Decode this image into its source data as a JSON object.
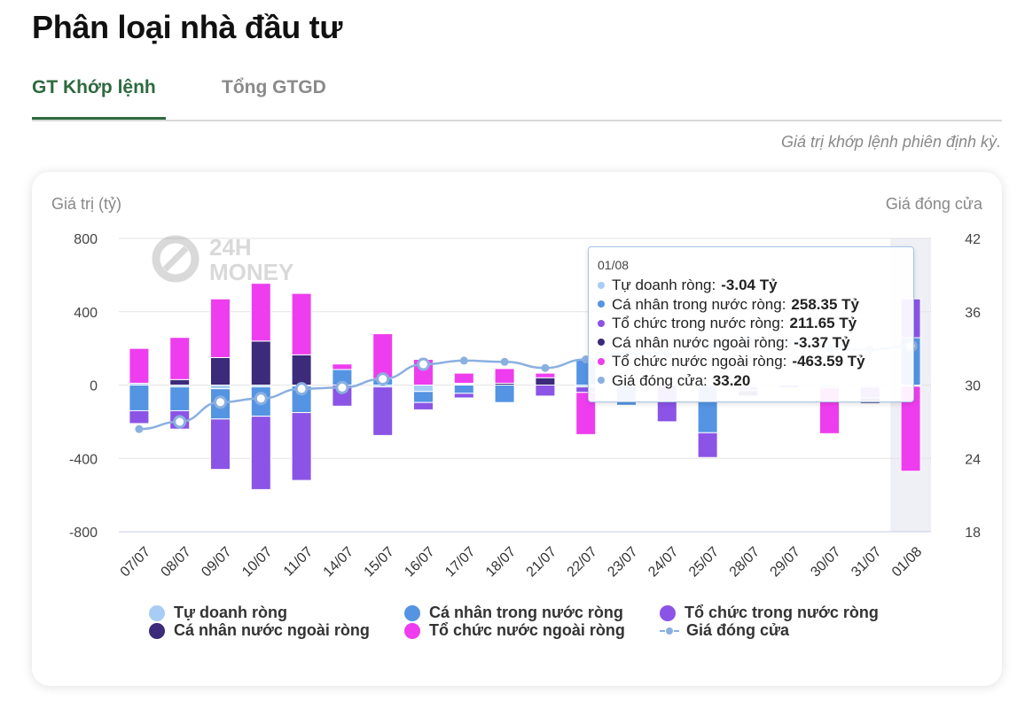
{
  "page": {
    "title": "Phân loại nhà đầu tư",
    "tabs": [
      "GT Khớp lệnh",
      "Tổng GTGD"
    ],
    "note": "Giá trị khớp lệnh phiên định kỳ."
  },
  "colors": {
    "tu_doanh": "#a7cdf4",
    "ca_nhan_trong_nuoc": "#5494e3",
    "to_chuc_trong_nuoc": "#8b54e6",
    "ca_nhan_nuoc_ngoai": "#3c2a7a",
    "to_chuc_nuoc_ngoai": "#ee3dee",
    "gia_dong_cua": "#8ab0e0",
    "accent": "#2d6a3e"
  },
  "watermark": {
    "line1": "24H",
    "line2": "MONEY"
  },
  "chart_data": {
    "type": "bar",
    "stacked": true,
    "yleft_title": "Giá trị (tỷ)",
    "yright_title": "Giá đóng cửa",
    "yleft_ticks": [
      "800",
      "400",
      "0",
      "-400",
      "-800"
    ],
    "yright_ticks": [
      "42",
      "36",
      "30",
      "24",
      "18"
    ],
    "ylim_left": [
      -800,
      800
    ],
    "ylim_right": [
      18,
      42
    ],
    "grid": true,
    "legend_position": "bottom",
    "categories": [
      "07/07",
      "08/07",
      "09/07",
      "10/07",
      "11/07",
      "14/07",
      "15/07",
      "16/07",
      "17/07",
      "18/07",
      "21/07",
      "22/07",
      "23/07",
      "24/07",
      "25/07",
      "28/07",
      "29/07",
      "30/07",
      "31/07",
      "01/08"
    ],
    "series": [
      {
        "name": "Tự doanh ròng",
        "key": "tu_doanh",
        "values": [
          10,
          -10,
          -20,
          -10,
          -5,
          0,
          -10,
          -35,
          5,
          0,
          0,
          -10,
          0,
          0,
          0,
          -10,
          0,
          -15,
          -10,
          -3.04
        ]
      },
      {
        "name": "Cá nhân trong nước ròng",
        "key": "ca_nhan_trong_nuoc",
        "values": [
          -140,
          -130,
          -165,
          -160,
          -145,
          85,
          35,
          -60,
          -45,
          -95,
          0,
          140,
          -110,
          0,
          -260,
          0,
          0,
          0,
          0,
          258.35
        ]
      },
      {
        "name": "Tổ chức trong nước ròng",
        "key": "to_chuc_trong_nuoc",
        "values": [
          -70,
          -100,
          -275,
          -400,
          -370,
          -115,
          -265,
          -40,
          -25,
          0,
          -60,
          -30,
          0,
          -200,
          -135,
          -20,
          -15,
          0,
          -60,
          211.65
        ]
      },
      {
        "name": "Cá nhân nước ngoài ròng",
        "key": "ca_nhan_nuoc_ngoai",
        "values": [
          -5,
          30,
          150,
          240,
          165,
          0,
          0,
          0,
          5,
          10,
          40,
          0,
          0,
          0,
          0,
          -30,
          0,
          0,
          -30,
          -3.37
        ]
      },
      {
        "name": "Tổ chức nước ngoài ròng",
        "key": "to_chuc_nuoc_ngoai",
        "values": [
          190,
          230,
          320,
          315,
          335,
          30,
          245,
          140,
          55,
          80,
          25,
          -230,
          0,
          0,
          0,
          0,
          0,
          -250,
          0,
          -463.59
        ]
      }
    ],
    "line": {
      "name": "Giá đóng cửa",
      "key": "gia_dong_cua",
      "values": [
        26.4,
        27.0,
        28.6,
        28.9,
        29.7,
        29.8,
        30.5,
        31.7,
        32.0,
        31.9,
        31.4,
        32.1,
        32.6,
        32.6,
        33.2,
        33.7,
        33.6,
        33.0,
        32.9,
        33.2
      ]
    },
    "highlight_index": 19,
    "tooltip": {
      "title": "01/08",
      "rows": [
        {
          "label": "Tự doanh ròng:",
          "value": "-3.04 Tỷ",
          "key": "tu_doanh"
        },
        {
          "label": "Cá nhân trong nước ròng:",
          "value": "258.35 Tỷ",
          "key": "ca_nhan_trong_nuoc"
        },
        {
          "label": "Tổ chức trong nước ròng:",
          "value": "211.65 Tỷ",
          "key": "to_chuc_trong_nuoc"
        },
        {
          "label": "Cá nhân nước ngoài ròng:",
          "value": "-3.37 Tỷ",
          "key": "ca_nhan_nuoc_ngoai"
        },
        {
          "label": "Tổ chức nước ngoài ròng:",
          "value": "-463.59 Tỷ",
          "key": "to_chuc_nuoc_ngoai"
        },
        {
          "label": "Giá đóng cửa:",
          "value": "33.20",
          "key": "gia_dong_cua"
        }
      ]
    },
    "legend": [
      {
        "label": "Tự doanh ròng",
        "key": "tu_doanh",
        "style": "dot"
      },
      {
        "label": "Cá nhân trong nước ròng",
        "key": "ca_nhan_trong_nuoc",
        "style": "dot"
      },
      {
        "label": "Tổ chức trong nước ròng",
        "key": "to_chuc_trong_nuoc",
        "style": "dot"
      },
      {
        "label": "Cá nhân nước ngoài ròng",
        "key": "ca_nhan_nuoc_ngoai",
        "style": "dot"
      },
      {
        "label": "Tổ chức nước ngoài ròng",
        "key": "to_chuc_nuoc_ngoai",
        "style": "dot"
      },
      {
        "label": "Giá đóng cửa",
        "key": "gia_dong_cua",
        "style": "line"
      }
    ]
  }
}
